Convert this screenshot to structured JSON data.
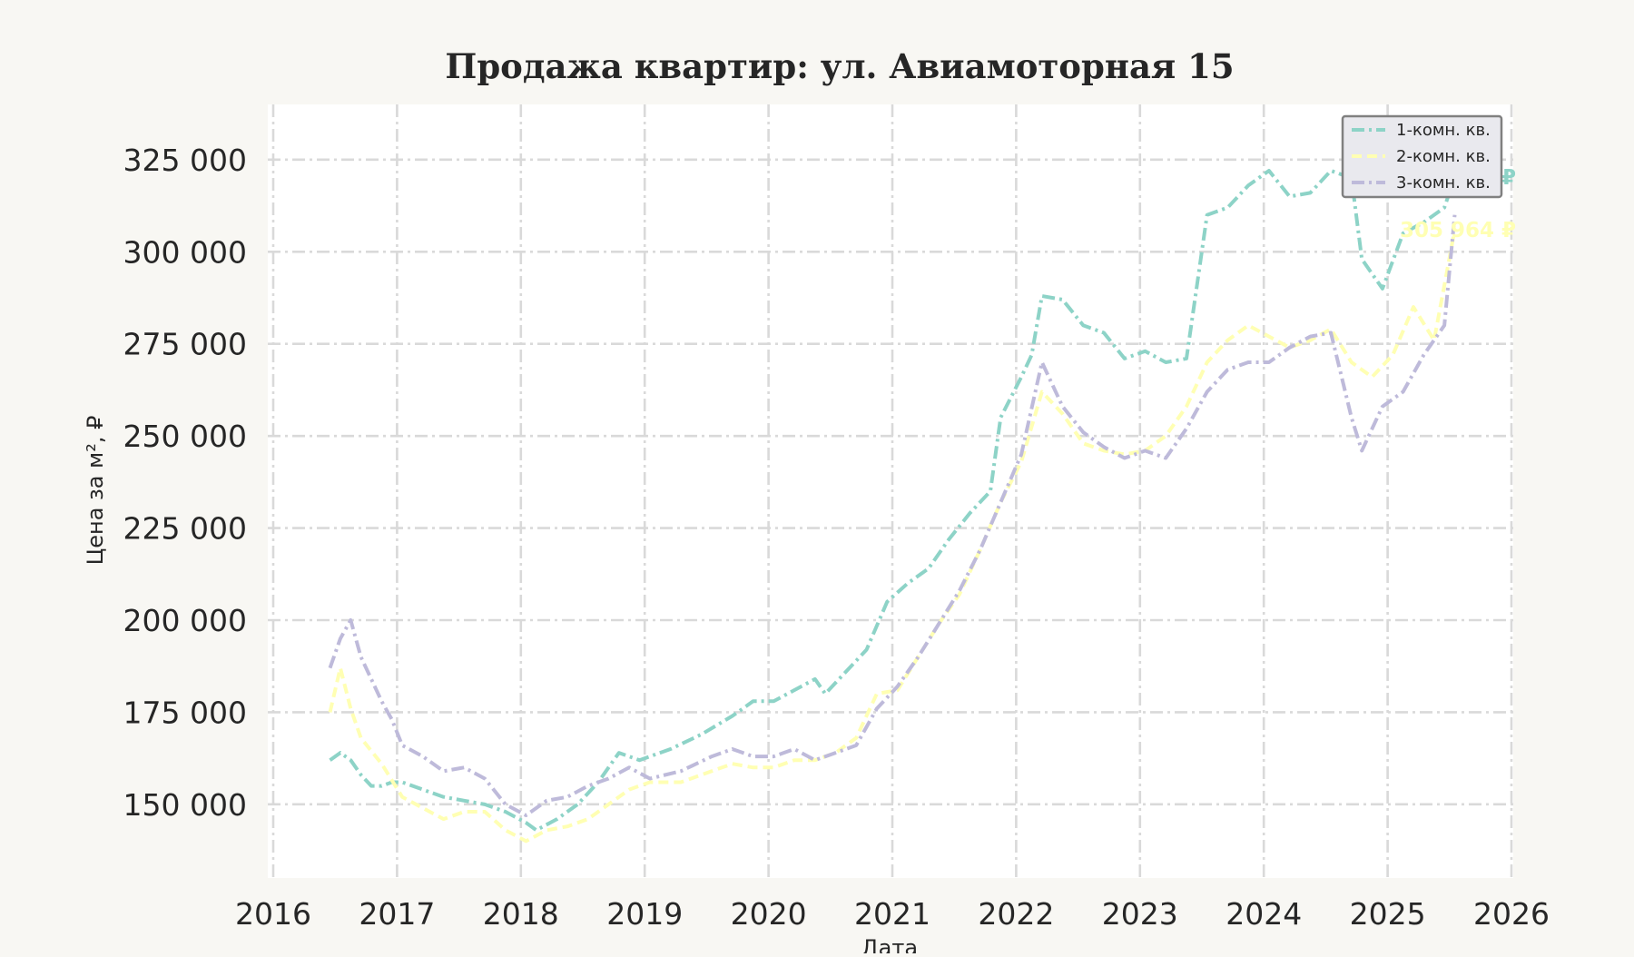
{
  "chart_data": {
    "type": "line",
    "title": "Продажа квартир: ул. Авиамоторная 15",
    "xlabel": "Дата",
    "ylabel": "Цена за м², ₽",
    "x_axis": {
      "type": "date",
      "range": [
        "2016-01-01",
        "2026-01-01"
      ],
      "ticks": [
        "2016",
        "2017",
        "2018",
        "2019",
        "2020",
        "2021",
        "2022",
        "2023",
        "2024",
        "2025",
        "2026"
      ]
    },
    "y_axis": {
      "range": [
        130000,
        340000
      ],
      "ticks": [
        150000,
        175000,
        200000,
        225000,
        250000,
        275000,
        300000,
        325000
      ],
      "tick_labels": [
        "150 000",
        "175 000",
        "200 000",
        "225 000",
        "250 000",
        "275 000",
        "300 000",
        "325 000"
      ]
    },
    "grid": true,
    "legend_position": "top-right",
    "series": [
      {
        "name": "1-комн. кв.",
        "color": "#8dd3c7",
        "dash": "dashdot",
        "end_label": "320 262 ₽",
        "points": [
          [
            "2016-06",
            162000
          ],
          [
            "2016-07",
            164000
          ],
          [
            "2016-08",
            162000
          ],
          [
            "2016-09",
            158000
          ],
          [
            "2016-10",
            155000
          ],
          [
            "2016-11",
            155000
          ],
          [
            "2016-12",
            156000
          ],
          [
            "2017-01",
            156000
          ],
          [
            "2017-03",
            154000
          ],
          [
            "2017-05",
            152000
          ],
          [
            "2017-07",
            151000
          ],
          [
            "2017-09",
            150000
          ],
          [
            "2017-11",
            148000
          ],
          [
            "2018-01",
            145000
          ],
          [
            "2018-02",
            143000
          ],
          [
            "2018-04",
            146000
          ],
          [
            "2018-06",
            150000
          ],
          [
            "2018-08",
            156000
          ],
          [
            "2018-10",
            164000
          ],
          [
            "2018-12",
            162000
          ],
          [
            "2019-03",
            165000
          ],
          [
            "2019-06",
            169000
          ],
          [
            "2019-09",
            174000
          ],
          [
            "2019-11",
            178000
          ],
          [
            "2020-01",
            178000
          ],
          [
            "2020-03",
            181000
          ],
          [
            "2020-05",
            184000
          ],
          [
            "2020-06",
            180000
          ],
          [
            "2020-08",
            186000
          ],
          [
            "2020-10",
            192000
          ],
          [
            "2020-12",
            205000
          ],
          [
            "2021-02",
            210000
          ],
          [
            "2021-04",
            214000
          ],
          [
            "2021-06",
            222000
          ],
          [
            "2021-08",
            229000
          ],
          [
            "2021-10",
            235000
          ],
          [
            "2021-11",
            255000
          ],
          [
            "2022-01",
            266000
          ],
          [
            "2022-02",
            272000
          ],
          [
            "2022-03",
            288000
          ],
          [
            "2022-05",
            287000
          ],
          [
            "2022-07",
            280000
          ],
          [
            "2022-09",
            278000
          ],
          [
            "2022-11",
            271000
          ],
          [
            "2023-01",
            273000
          ],
          [
            "2023-03",
            270000
          ],
          [
            "2023-05",
            271000
          ],
          [
            "2023-07",
            310000
          ],
          [
            "2023-09",
            312000
          ],
          [
            "2023-11",
            318000
          ],
          [
            "2024-01",
            322000
          ],
          [
            "2024-03",
            315000
          ],
          [
            "2024-05",
            316000
          ],
          [
            "2024-07",
            322000
          ],
          [
            "2024-09",
            320000
          ],
          [
            "2024-10",
            298000
          ],
          [
            "2024-12",
            290000
          ],
          [
            "2025-02",
            305000
          ],
          [
            "2025-04",
            308000
          ],
          [
            "2025-06",
            312000
          ],
          [
            "2025-07",
            320262
          ]
        ]
      },
      {
        "name": "2-комн. кв.",
        "color": "#ffffb3",
        "dash": "dashed",
        "end_label": "305 964 ₽",
        "points": [
          [
            "2016-06",
            175000
          ],
          [
            "2016-07",
            187000
          ],
          [
            "2016-08",
            176000
          ],
          [
            "2016-09",
            168000
          ],
          [
            "2016-11",
            161000
          ],
          [
            "2017-01",
            152000
          ],
          [
            "2017-03",
            149000
          ],
          [
            "2017-05",
            146000
          ],
          [
            "2017-07",
            148000
          ],
          [
            "2017-09",
            148000
          ],
          [
            "2017-11",
            143000
          ],
          [
            "2018-01",
            140000
          ],
          [
            "2018-03",
            143000
          ],
          [
            "2018-05",
            144000
          ],
          [
            "2018-07",
            146000
          ],
          [
            "2018-09",
            150000
          ],
          [
            "2018-11",
            154000
          ],
          [
            "2019-01",
            156000
          ],
          [
            "2019-04",
            156000
          ],
          [
            "2019-07",
            159000
          ],
          [
            "2019-09",
            161000
          ],
          [
            "2019-11",
            160000
          ],
          [
            "2020-01",
            160000
          ],
          [
            "2020-03",
            162000
          ],
          [
            "2020-05",
            162000
          ],
          [
            "2020-07",
            164000
          ],
          [
            "2020-09",
            168000
          ],
          [
            "2020-11",
            180000
          ],
          [
            "2021-01",
            181000
          ],
          [
            "2021-03",
            190000
          ],
          [
            "2021-05",
            199000
          ],
          [
            "2021-07",
            207000
          ],
          [
            "2021-09",
            219000
          ],
          [
            "2021-11",
            232000
          ],
          [
            "2022-01",
            243000
          ],
          [
            "2022-03",
            262000
          ],
          [
            "2022-05",
            256000
          ],
          [
            "2022-07",
            248000
          ],
          [
            "2022-09",
            246000
          ],
          [
            "2022-11",
            245000
          ],
          [
            "2023-01",
            246000
          ],
          [
            "2023-03",
            250000
          ],
          [
            "2023-05",
            258000
          ],
          [
            "2023-07",
            270000
          ],
          [
            "2023-09",
            276000
          ],
          [
            "2023-11",
            280000
          ],
          [
            "2024-01",
            277000
          ],
          [
            "2024-03",
            274000
          ],
          [
            "2024-05",
            276000
          ],
          [
            "2024-07",
            279000
          ],
          [
            "2024-09",
            270000
          ],
          [
            "2024-11",
            266000
          ],
          [
            "2025-01",
            272000
          ],
          [
            "2025-03",
            285000
          ],
          [
            "2025-05",
            276000
          ],
          [
            "2025-07",
            305964
          ]
        ]
      },
      {
        "name": "3-комн. кв.",
        "color": "#bebada",
        "dash": "dashdot",
        "end_label": "",
        "points": [
          [
            "2016-06",
            187000
          ],
          [
            "2016-07",
            195000
          ],
          [
            "2016-08",
            200000
          ],
          [
            "2016-09",
            190000
          ],
          [
            "2016-10",
            184000
          ],
          [
            "2016-11",
            178000
          ],
          [
            "2016-12",
            173000
          ],
          [
            "2017-01",
            166000
          ],
          [
            "2017-03",
            163000
          ],
          [
            "2017-05",
            159000
          ],
          [
            "2017-07",
            160000
          ],
          [
            "2017-09",
            157000
          ],
          [
            "2017-11",
            150000
          ],
          [
            "2018-01",
            147000
          ],
          [
            "2018-03",
            151000
          ],
          [
            "2018-05",
            152000
          ],
          [
            "2018-07",
            155000
          ],
          [
            "2018-09",
            157000
          ],
          [
            "2018-11",
            160000
          ],
          [
            "2019-01",
            157000
          ],
          [
            "2019-04",
            159000
          ],
          [
            "2019-07",
            163000
          ],
          [
            "2019-09",
            165000
          ],
          [
            "2019-11",
            163000
          ],
          [
            "2020-01",
            163000
          ],
          [
            "2020-03",
            165000
          ],
          [
            "2020-05",
            162000
          ],
          [
            "2020-07",
            164000
          ],
          [
            "2020-09",
            166000
          ],
          [
            "2020-11",
            176000
          ],
          [
            "2021-01",
            182000
          ],
          [
            "2021-03",
            190000
          ],
          [
            "2021-05",
            199000
          ],
          [
            "2021-07",
            208000
          ],
          [
            "2021-09",
            219000
          ],
          [
            "2021-11",
            232000
          ],
          [
            "2022-01",
            245000
          ],
          [
            "2022-03",
            270000
          ],
          [
            "2022-05",
            258000
          ],
          [
            "2022-07",
            251000
          ],
          [
            "2022-09",
            247000
          ],
          [
            "2022-11",
            244000
          ],
          [
            "2023-01",
            246000
          ],
          [
            "2023-03",
            244000
          ],
          [
            "2023-05",
            252000
          ],
          [
            "2023-07",
            262000
          ],
          [
            "2023-09",
            268000
          ],
          [
            "2023-11",
            270000
          ],
          [
            "2024-01",
            270000
          ],
          [
            "2024-03",
            274000
          ],
          [
            "2024-05",
            277000
          ],
          [
            "2024-07",
            278000
          ],
          [
            "2024-09",
            255000
          ],
          [
            "2024-10",
            246000
          ],
          [
            "2024-12",
            258000
          ],
          [
            "2025-02",
            262000
          ],
          [
            "2025-04",
            272000
          ],
          [
            "2025-06",
            280000
          ],
          [
            "2025-07",
            310000
          ]
        ]
      }
    ]
  }
}
